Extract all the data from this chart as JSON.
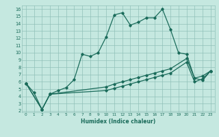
{
  "xlabel": "Humidex (Indice chaleur)",
  "bg_color": "#c5e8e0",
  "grid_color": "#90c0b8",
  "line_color": "#1a6b5a",
  "xticks": [
    0,
    1,
    2,
    3,
    4,
    5,
    6,
    7,
    8,
    9,
    10,
    11,
    12,
    13,
    14,
    15,
    16,
    17,
    18,
    19,
    20,
    21,
    22,
    23
  ],
  "yticks": [
    2,
    3,
    4,
    5,
    6,
    7,
    8,
    9,
    10,
    11,
    12,
    13,
    14,
    15,
    16
  ],
  "xlim": [
    -0.5,
    23.5
  ],
  "ylim": [
    1.8,
    16.5
  ],
  "line1_x": [
    0,
    1,
    2,
    3,
    4,
    5,
    6,
    7,
    8,
    9,
    10,
    11,
    12,
    13,
    14,
    15,
    16,
    17,
    18,
    19,
    20,
    21,
    22,
    23
  ],
  "line1_y": [
    5.8,
    4.5,
    2.2,
    4.3,
    4.8,
    5.2,
    6.3,
    9.8,
    9.5,
    10.0,
    12.2,
    15.2,
    15.5,
    13.8,
    14.2,
    14.8,
    14.8,
    16.0,
    13.2,
    10.0,
    9.8,
    6.5,
    6.2,
    7.5
  ],
  "line2_x": [
    0,
    2,
    3,
    10,
    11,
    12,
    13,
    14,
    15,
    16,
    17,
    18,
    20,
    21,
    22,
    23
  ],
  "line2_y": [
    5.8,
    2.2,
    4.3,
    5.3,
    5.7,
    6.0,
    6.3,
    6.6,
    6.9,
    7.2,
    7.5,
    7.8,
    9.2,
    6.5,
    6.8,
    7.5
  ],
  "line3_x": [
    0,
    2,
    3,
    10,
    11,
    12,
    13,
    14,
    15,
    16,
    17,
    18,
    20,
    21,
    22,
    23
  ],
  "line3_y": [
    5.8,
    2.2,
    4.3,
    4.8,
    5.1,
    5.4,
    5.7,
    6.0,
    6.3,
    6.6,
    6.9,
    7.2,
    8.7,
    6.0,
    6.4,
    7.5
  ]
}
